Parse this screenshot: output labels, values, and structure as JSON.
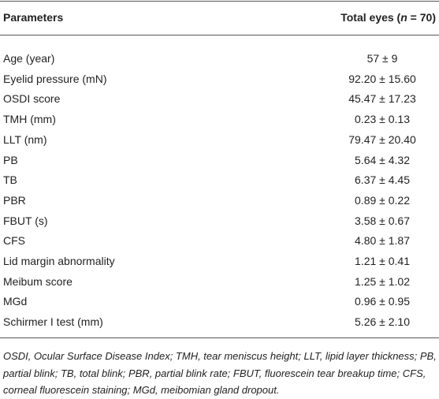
{
  "table": {
    "header": [
      "Parameters",
      [
        "Total eyes (",
        "n",
        " = 70)"
      ]
    ],
    "rows": [
      [
        "Age (year)",
        "57 ± 9"
      ],
      [
        "Eyelid pressure (mN)",
        "92.20 ± 15.60"
      ],
      [
        "OSDI score",
        "45.47 ± 17.23"
      ],
      [
        "TMH (mm)",
        "0.23 ± 0.13"
      ],
      [
        "LLT (nm)",
        "79.47 ± 20.40"
      ],
      [
        "PB",
        "5.64 ± 4.32"
      ],
      [
        "TB",
        "6.37 ± 4.45"
      ],
      [
        "PBR",
        "0.89 ± 0.22"
      ],
      [
        "FBUT (s)",
        "3.58 ± 0.67"
      ],
      [
        "CFS",
        "4.80 ± 1.87"
      ],
      [
        "Lid margin abnormality",
        "1.21 ± 0.41"
      ],
      [
        "Meibum score",
        "1.25 ± 1.02"
      ],
      [
        "MGd",
        "0.96 ± 0.95"
      ],
      [
        "Schirmer I test (mm)",
        "5.26 ± 2.10"
      ]
    ],
    "footnote": "OSDI, Ocular Surface Disease Index; TMH, tear meniscus height; LLT, lipid layer thickness; PB, partial blink; TB, total blink; PBR, partial blink rate; FBUT, fluorescein tear breakup time; CFS, corneal fluorescein staining; MGd, meibomian gland dropout."
  }
}
